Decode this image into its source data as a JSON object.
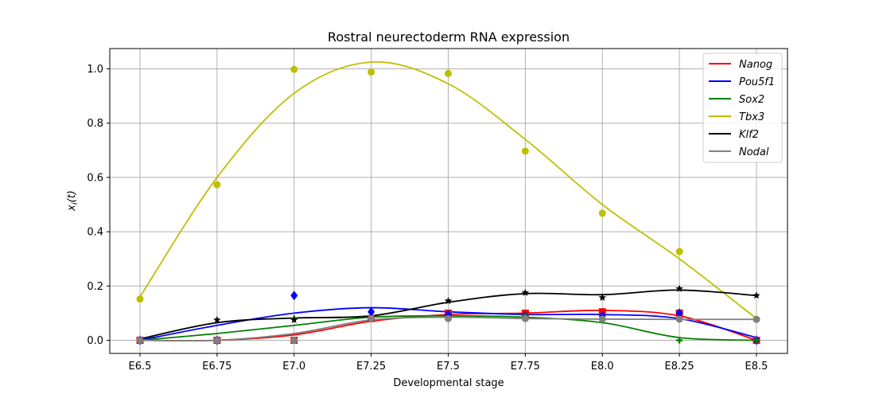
{
  "chart_data": {
    "type": "line",
    "title": "Rostral neurectoderm RNA expression",
    "xlabel": "Developmental stage",
    "ylabel": "x_i(t)",
    "categories": [
      "E6.5",
      "E6.75",
      "E7.0",
      "E7.25",
      "E7.5",
      "E7.75",
      "E8.0",
      "E8.25",
      "E8.5"
    ],
    "yticks": [
      "0.0",
      "0.2",
      "0.4",
      "0.6",
      "0.8",
      "1.0"
    ],
    "ylim": [
      -0.05,
      1.08
    ],
    "grid": true,
    "legend_position": "top-right",
    "series": [
      {
        "name": "Nanog",
        "color": "#ff0000",
        "marker": "square",
        "points": [
          0.0,
          0.0,
          0.0,
          0.08,
          0.1,
          0.1,
          0.105,
          0.1,
          0.0
        ],
        "curve": [
          0.0,
          0.0,
          0.02,
          0.07,
          0.095,
          0.1,
          0.11,
          0.09,
          0.0
        ]
      },
      {
        "name": "Pou5f1",
        "color": "#0000ff",
        "marker": "diamond",
        "points": [
          0.0,
          0.0,
          0.165,
          0.105,
          0.095,
          0.09,
          0.09,
          0.1,
          0.0
        ],
        "curve": [
          0.0,
          0.055,
          0.1,
          0.12,
          0.105,
          0.095,
          0.095,
          0.08,
          0.01
        ]
      },
      {
        "name": "Sox2",
        "color": "#008000",
        "marker": "plus",
        "points": [
          0.0,
          0.0,
          0.08,
          0.08,
          0.08,
          0.09,
          0.08,
          0.0,
          0.0
        ],
        "curve": [
          0.0,
          0.025,
          0.055,
          0.085,
          0.09,
          0.085,
          0.065,
          0.01,
          0.0
        ]
      },
      {
        "name": "Tbx3",
        "color": "#bfbf00",
        "marker": "circle",
        "points": [
          0.152,
          0.573,
          0.998,
          0.988,
          0.983,
          0.697,
          0.468,
          0.327,
          0.077
        ],
        "curve": [
          0.16,
          0.6,
          0.91,
          1.025,
          0.945,
          0.74,
          0.5,
          0.3,
          0.08
        ]
      },
      {
        "name": "Klf2",
        "color": "#000000",
        "marker": "star",
        "points": [
          0.0,
          0.075,
          0.075,
          0.08,
          0.145,
          0.175,
          0.157,
          0.19,
          0.165
        ],
        "curve": [
          0.005,
          0.065,
          0.082,
          0.09,
          0.14,
          0.172,
          0.168,
          0.185,
          0.165
        ]
      },
      {
        "name": "Nodal",
        "color": "#808080",
        "marker": "circle",
        "points": [
          0.0,
          0.0,
          0.0,
          0.08,
          0.08,
          0.08,
          0.078,
          0.078,
          0.077
        ],
        "curve": [
          0.0,
          0.0,
          0.025,
          0.075,
          0.085,
          0.08,
          0.078,
          0.077,
          0.077
        ]
      }
    ]
  }
}
